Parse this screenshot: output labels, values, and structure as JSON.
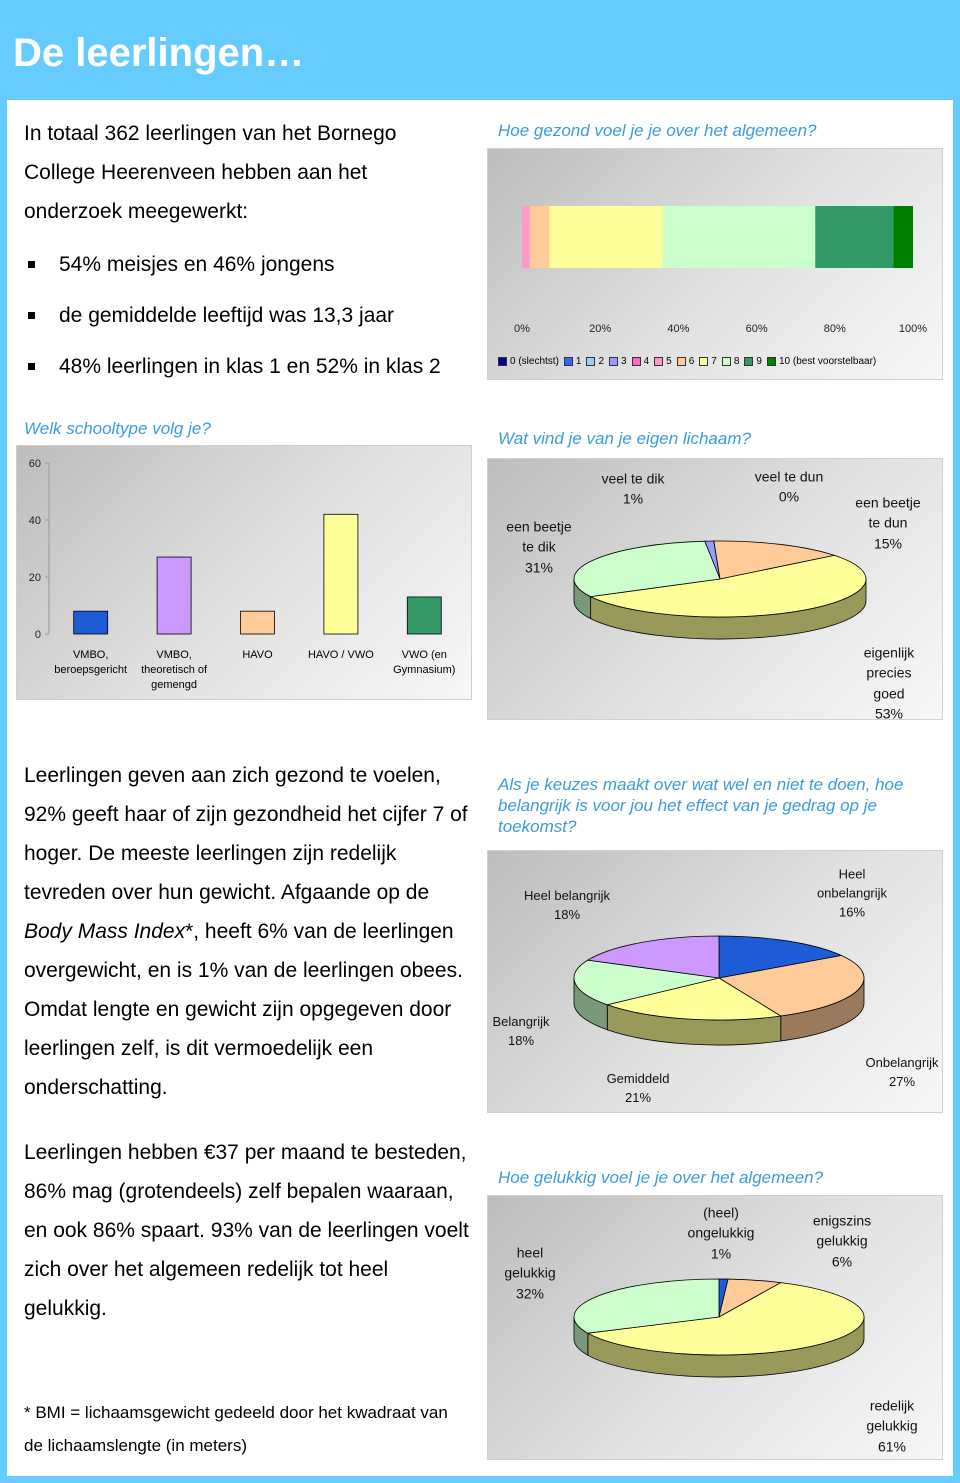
{
  "header": {
    "title": "De leerlingen…"
  },
  "intro": {
    "text": "In totaal 362 leerlingen van het Bornego College Heerenveen hebben aan het onderzoek meegewerkt:",
    "bullets": [
      "54% meisjes en 46% jongens",
      "de gemiddelde leeftijd was 13,3 jaar",
      "48% leerlingen in klas 1 en 52% in klas 2"
    ]
  },
  "chart_data": [
    {
      "type": "bar",
      "title": "Hoe gezond voel je je over het algemeen?",
      "orientation": "horizontal",
      "stacked": true,
      "xlim": [
        0,
        100
      ],
      "xticks": [
        {
          "value": 0,
          "label": "0%"
        },
        {
          "value": 20,
          "label": "20%"
        },
        {
          "value": 40,
          "label": "40%"
        },
        {
          "value": 60,
          "label": "60%"
        },
        {
          "value": 80,
          "label": "80%"
        },
        {
          "value": 100,
          "label": "100%"
        }
      ],
      "series": [
        {
          "name": "0 (slechtst)",
          "color": "#000099",
          "values": [
            0
          ]
        },
        {
          "name": "1",
          "color": "#3366ff",
          "values": [
            0
          ]
        },
        {
          "name": "2",
          "color": "#99ccff",
          "values": [
            0
          ]
        },
        {
          "name": "3",
          "color": "#9999ff",
          "values": [
            0
          ]
        },
        {
          "name": "4",
          "color": "#ff66cc",
          "values": [
            0
          ]
        },
        {
          "name": "5",
          "color": "#ff99cc",
          "values": [
            2
          ]
        },
        {
          "name": "6",
          "color": "#ffcc99",
          "values": [
            5
          ]
        },
        {
          "name": "7",
          "color": "#ffff99",
          "values": [
            29
          ]
        },
        {
          "name": "8",
          "color": "#ccffcc",
          "values": [
            39
          ]
        },
        {
          "name": "9",
          "color": "#339966",
          "values": [
            20
          ]
        },
        {
          "name": "10 (best voorstelbaar)",
          "color": "#008000",
          "values": [
            5
          ]
        }
      ]
    },
    {
      "type": "bar",
      "title": "Welk schooltype volg je?",
      "orientation": "vertical",
      "categories": [
        "VMBO, beroepsgericht",
        "VMBO, theoretisch of gemengd",
        "HAVO",
        "HAVO / VWO",
        "VWO (en Gymnasium)"
      ],
      "values": [
        8,
        27,
        8,
        42,
        13
      ],
      "colors": [
        "#1e5bd6",
        "#cc99ff",
        "#ffcc99",
        "#ffff99",
        "#339966"
      ],
      "ylim": [
        0,
        60
      ],
      "yticks": [
        0,
        20,
        40,
        60
      ]
    },
    {
      "type": "pie",
      "title": "Wat vind je van je eigen lichaam?",
      "categories": [
        "veel te dik",
        "veel te dun",
        "een beetje te dun",
        "eigenlijk precies goed",
        "een beetje te dik"
      ],
      "values": [
        1,
        0,
        15,
        53,
        31
      ],
      "value_labels": [
        "1%",
        "0%",
        "15%",
        "53%",
        "31%"
      ],
      "colors": [
        "#9999ff",
        "#3366ff",
        "#ffcc99",
        "#ffff99",
        "#ccffcc"
      ]
    },
    {
      "type": "pie",
      "title": "Als je keuzes maakt over wat wel en niet te doen, hoe belangrijk is voor jou het effect van je gedrag op je toekomst?",
      "categories": [
        "Heel onbelangrijk",
        "Onbelangrijk",
        "Gemiddeld",
        "Belangrijk",
        "Heel belangrijk"
      ],
      "values": [
        16,
        27,
        21,
        18,
        18
      ],
      "value_labels": [
        "16%",
        "27%",
        "21%",
        "18%",
        "18%"
      ],
      "colors": [
        "#1e5bd6",
        "#ffcc99",
        "#ffff99",
        "#ccffcc",
        "#cc99ff"
      ]
    },
    {
      "type": "pie",
      "title": "Hoe gelukkig voel je je over het algemeen?",
      "categories": [
        "(heel) ongelukkig",
        "enigszins gelukkig",
        "redelijk gelukkig",
        "heel gelukkig"
      ],
      "values": [
        1,
        6,
        61,
        32
      ],
      "value_labels": [
        "1%",
        "6%",
        "61%",
        "32%"
      ],
      "colors": [
        "#1e5bd6",
        "#ffcc99",
        "#ffff99",
        "#ccffcc"
      ]
    }
  ],
  "paragraphs": [
    {
      "text_1": "Leerlingen geven aan zich gezond te voelen, 92% geeft haar of zijn gezondheid het cijfer 7 of hoger. De meeste leerlingen zijn redelijk tevreden over hun gewicht. Afgaande op de ",
      "emphasis": "Body Mass Index",
      "text_2": "*, heeft 6% van de leerlingen overgewicht, en is 1% van de leerlingen obees. Omdat lengte en gewicht zijn opgegeven door leerlingen zelf, is dit vermoedelijk een onderschatting."
    },
    {
      "text_1": "Leerlingen hebben €37 per maand te besteden, 86% mag (grotendeels) zelf bepalen waaraan, en ook 86% spaart. 93% van de leerlingen voelt zich over het algemeen redelijk tot heel gelukkig."
    }
  ],
  "footnote": "* BMI = lichaamsgewicht gedeeld door het kwadraat van de lichaamslengte (in meters)"
}
